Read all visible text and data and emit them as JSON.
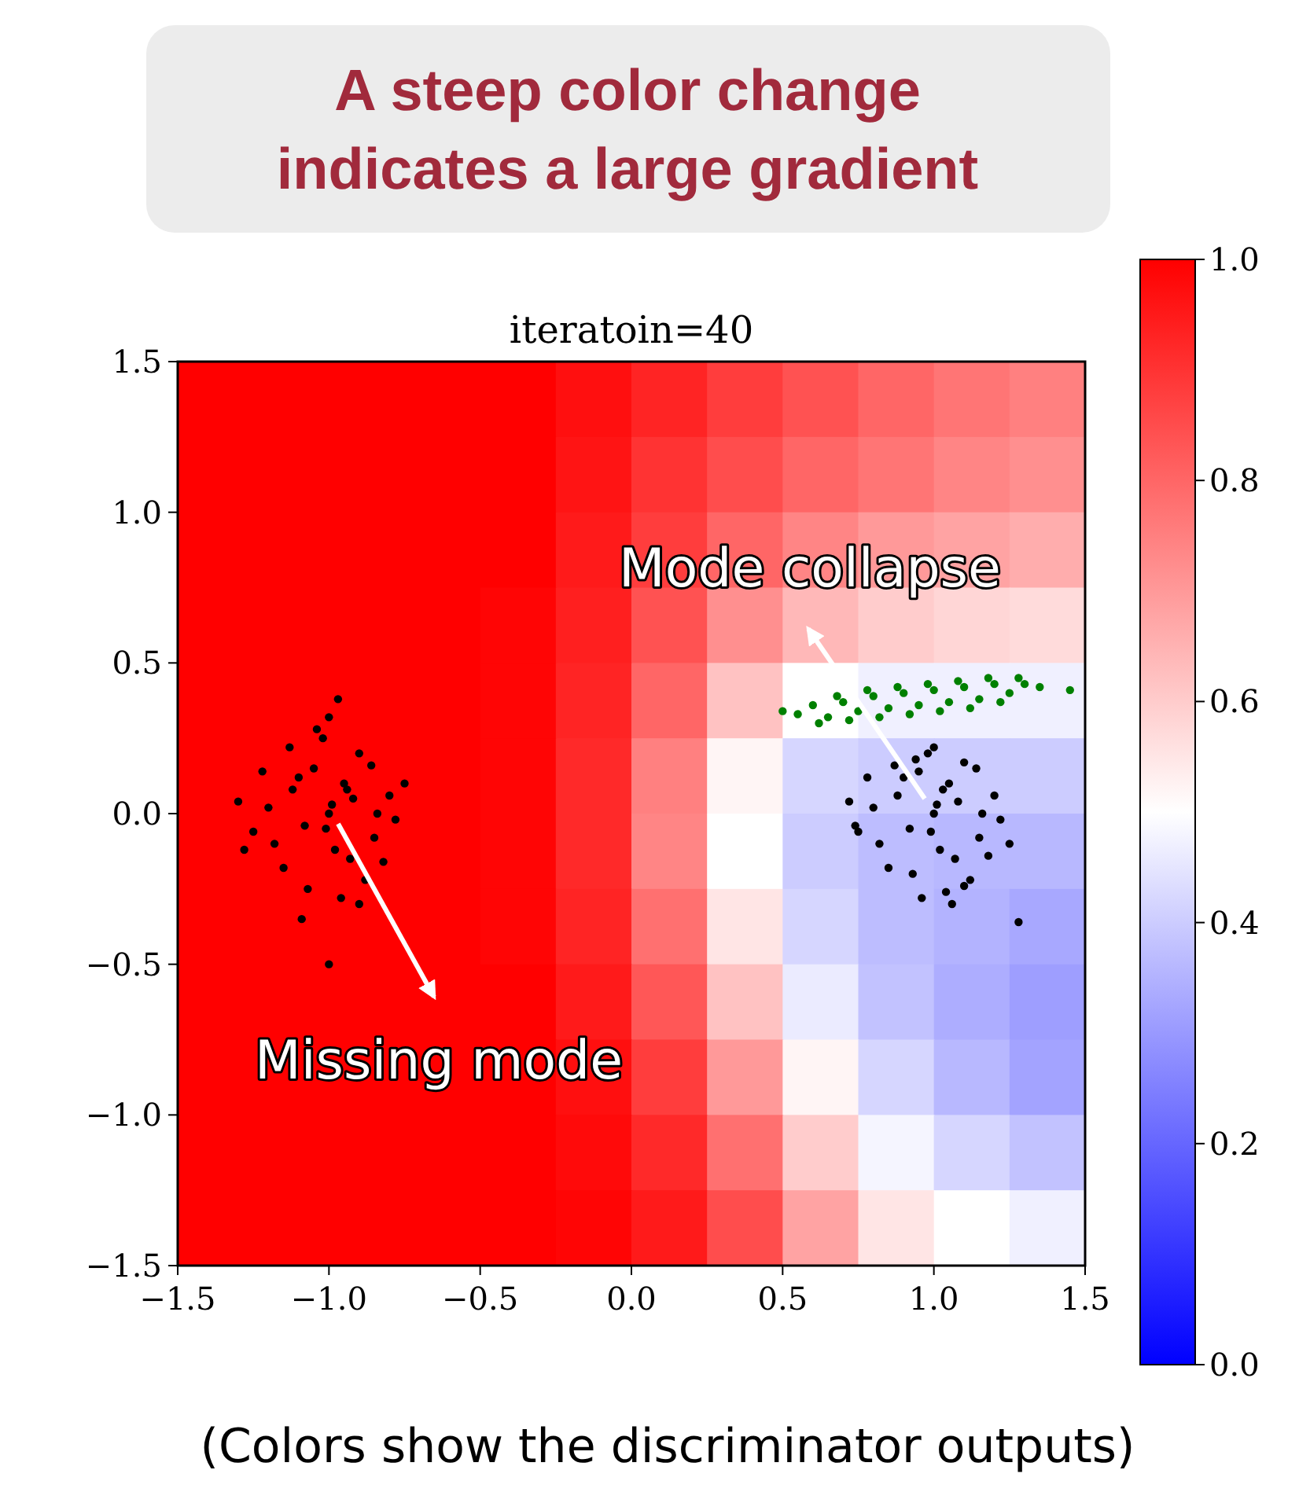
{
  "chart_data": {
    "type": "heatmap",
    "title": "A steep color change indicates a large gradient",
    "subtitle": "iteratoin=40",
    "annotations": [
      "Mode collapse",
      "Missing mode",
      "(Colors show the discriminator outputs)"
    ],
    "cells": [
      [
        1,
        1,
        1,
        1,
        1,
        0.97,
        0.93,
        0.88,
        0.84,
        0.8,
        0.77,
        0.75
      ],
      [
        1,
        1,
        1,
        1,
        1,
        0.96,
        0.9,
        0.85,
        0.8,
        0.77,
        0.74,
        0.72
      ],
      [
        1,
        1,
        1,
        1,
        1,
        0.95,
        0.88,
        0.8,
        0.74,
        0.7,
        0.68,
        0.66
      ],
      [
        1,
        1,
        1,
        1,
        0.99,
        0.94,
        0.84,
        0.72,
        0.64,
        0.6,
        0.58,
        0.57
      ],
      [
        1,
        1,
        1,
        1,
        0.99,
        0.93,
        0.8,
        0.62,
        0.5,
        0.47,
        0.47,
        0.47
      ],
      [
        1,
        1,
        1,
        1,
        0.99,
        0.92,
        0.75,
        0.52,
        0.42,
        0.4,
        0.4,
        0.4
      ],
      [
        1,
        1,
        1,
        1,
        0.99,
        0.92,
        0.74,
        0.5,
        0.4,
        0.37,
        0.36,
        0.36
      ],
      [
        1,
        1,
        1,
        1,
        0.99,
        0.93,
        0.78,
        0.55,
        0.42,
        0.37,
        0.35,
        0.33
      ],
      [
        1,
        1,
        1,
        1,
        1,
        0.95,
        0.83,
        0.62,
        0.46,
        0.38,
        0.34,
        0.31
      ],
      [
        1,
        1,
        1,
        1,
        1,
        0.97,
        0.88,
        0.7,
        0.52,
        0.42,
        0.36,
        0.32
      ],
      [
        1,
        1,
        1,
        1,
        1,
        0.98,
        0.92,
        0.78,
        0.6,
        0.48,
        0.42,
        0.38
      ],
      [
        1,
        1,
        1,
        1,
        1,
        0.99,
        0.95,
        0.85,
        0.68,
        0.55,
        0.5,
        0.47
      ]
    ],
    "clim": [
      0,
      1
    ],
    "cticks": [
      {
        "value": 0,
        "label": "0.0"
      },
      {
        "value": 0.2,
        "label": "0.2"
      },
      {
        "value": 0.4,
        "label": "0.4"
      },
      {
        "value": 0.6,
        "label": "0.6"
      },
      {
        "value": 0.8,
        "label": "0.8"
      },
      {
        "value": 1,
        "label": "1.0"
      }
    ],
    "xlim": [
      -1.5,
      1.5
    ],
    "ylim": [
      -1.5,
      1.5
    ],
    "xticks": [
      {
        "value": -1.5,
        "label": "−1.5"
      },
      {
        "value": -1,
        "label": "−1.0"
      },
      {
        "value": -0.5,
        "label": "−0.5"
      },
      {
        "value": 0,
        "label": "0.0"
      },
      {
        "value": 0.5,
        "label": "0.5"
      },
      {
        "value": 1,
        "label": "1.0"
      },
      {
        "value": 1.5,
        "label": "1.5"
      }
    ],
    "yticks": [
      {
        "value": -1.5,
        "label": "−1.5"
      },
      {
        "value": -1,
        "label": "−1.0"
      },
      {
        "value": -0.5,
        "label": "−0.5"
      },
      {
        "value": 0,
        "label": "0.0"
      },
      {
        "value": 0.5,
        "label": "0.5"
      },
      {
        "value": 1,
        "label": "1.0"
      },
      {
        "value": 1.5,
        "label": "1.5"
      }
    ],
    "marker": "circle",
    "series": [
      {
        "type": "scatter",
        "color": "#000000",
        "x": [
          -1.0,
          -0.92,
          -1.08,
          -0.95,
          -1.12,
          -0.85,
          -1.2,
          -0.98,
          -1.05,
          -0.9,
          -1.15,
          -0.8,
          -1.25,
          -1.02,
          -0.88,
          -1.1,
          -0.96,
          -0.78,
          -1.3,
          -1.0,
          -0.93,
          -1.07,
          -0.86,
          -1.18,
          -0.99,
          -1.22,
          -0.82,
          -1.04,
          -0.9,
          -1.13,
          -0.97,
          -0.75,
          -1.28,
          -1.0,
          -0.94,
          -1.09,
          -0.84,
          -1.01
        ],
        "values": [
          0.0,
          0.05,
          -0.04,
          0.1,
          0.08,
          -0.08,
          0.02,
          -0.12,
          0.15,
          0.2,
          -0.18,
          0.06,
          -0.06,
          0.25,
          -0.22,
          0.12,
          -0.28,
          -0.02,
          0.04,
          0.32,
          -0.15,
          -0.25,
          0.16,
          -0.1,
          0.03,
          0.14,
          -0.16,
          0.28,
          -0.3,
          0.22,
          0.38,
          0.1,
          -0.12,
          -0.5,
          0.08,
          -0.35,
          0.0,
          -0.05
        ]
      },
      {
        "type": "scatter",
        "color": "#000000",
        "x": [
          1.0,
          1.08,
          0.92,
          1.05,
          0.88,
          1.15,
          0.8,
          1.02,
          0.95,
          1.1,
          0.85,
          1.2,
          0.75,
          0.98,
          1.12,
          0.9,
          1.04,
          1.22,
          0.72,
          1.0,
          1.07,
          0.93,
          1.14,
          0.82,
          1.01,
          0.78,
          1.18,
          0.96,
          1.1,
          0.87,
          1.03,
          1.25,
          0.74,
          1.06,
          1.28,
          0.94,
          1.16,
          0.99
        ],
        "values": [
          0.0,
          0.04,
          -0.05,
          0.1,
          0.06,
          -0.08,
          0.02,
          -0.12,
          0.14,
          0.17,
          -0.18,
          0.06,
          -0.06,
          0.2,
          -0.22,
          0.12,
          -0.26,
          -0.02,
          0.04,
          0.22,
          -0.15,
          -0.2,
          0.15,
          -0.1,
          0.03,
          0.12,
          -0.14,
          -0.28,
          -0.24,
          0.16,
          0.08,
          -0.1,
          -0.04,
          -0.3,
          -0.36,
          0.18,
          0.0,
          -0.06
        ]
      },
      {
        "type": "scatter",
        "color": "#008000",
        "x": [
          0.5,
          0.55,
          0.6,
          0.65,
          0.7,
          0.75,
          0.8,
          0.85,
          0.9,
          0.95,
          1.0,
          1.05,
          1.1,
          1.15,
          1.2,
          1.25,
          1.3,
          1.35,
          0.62,
          0.72,
          0.82,
          0.92,
          1.02,
          1.12,
          1.22,
          0.68,
          0.78,
          0.88,
          0.98,
          1.08,
          1.18,
          1.28,
          1.45
        ],
        "values": [
          0.34,
          0.33,
          0.36,
          0.32,
          0.37,
          0.34,
          0.39,
          0.35,
          0.4,
          0.36,
          0.41,
          0.37,
          0.42,
          0.38,
          0.43,
          0.4,
          0.43,
          0.42,
          0.3,
          0.31,
          0.32,
          0.33,
          0.34,
          0.35,
          0.37,
          0.39,
          0.41,
          0.42,
          0.43,
          0.44,
          0.45,
          0.45,
          0.41
        ]
      }
    ]
  }
}
